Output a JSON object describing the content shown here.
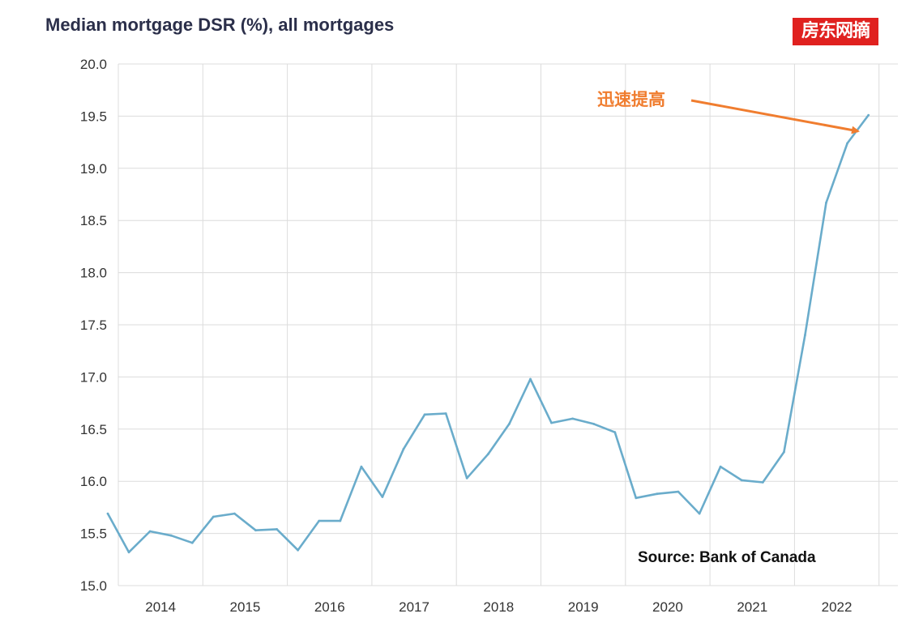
{
  "chart_data": {
    "type": "line",
    "title": "Median mortgage DSR (%), all mortgages",
    "xlabel": "",
    "ylabel": "",
    "ylim": [
      15.0,
      20.0
    ],
    "yticks": [
      "20.0",
      "19.5",
      "19.0",
      "18.5",
      "18.0",
      "17.5",
      "17.0",
      "16.5",
      "16.0",
      "15.5",
      "15.0"
    ],
    "xticks": [
      "2014",
      "2015",
      "2016",
      "2017",
      "2018",
      "2019",
      "2020",
      "2021",
      "2022"
    ],
    "grid": true,
    "series": [
      {
        "color": "#6aaccb",
        "points": [
          {
            "x": "2013Q4",
            "y": 15.69
          },
          {
            "x": "2014Q1",
            "y": 15.32
          },
          {
            "x": "2014Q2",
            "y": 15.52
          },
          {
            "x": "2014Q3",
            "y": 15.48
          },
          {
            "x": "2014Q4",
            "y": 15.41
          },
          {
            "x": "2015Q1",
            "y": 15.66
          },
          {
            "x": "2015Q2",
            "y": 15.69
          },
          {
            "x": "2015Q3",
            "y": 15.53
          },
          {
            "x": "2015Q4",
            "y": 15.54
          },
          {
            "x": "2016Q1",
            "y": 15.34
          },
          {
            "x": "2016Q2",
            "y": 15.62
          },
          {
            "x": "2016Q3",
            "y": 15.62
          },
          {
            "x": "2016Q4",
            "y": 16.14
          },
          {
            "x": "2017Q1",
            "y": 15.85
          },
          {
            "x": "2017Q2",
            "y": 16.31
          },
          {
            "x": "2017Q3",
            "y": 16.64
          },
          {
            "x": "2017Q4",
            "y": 16.65
          },
          {
            "x": "2018Q1",
            "y": 16.03
          },
          {
            "x": "2018Q2",
            "y": 16.26
          },
          {
            "x": "2018Q3",
            "y": 16.55
          },
          {
            "x": "2018Q4",
            "y": 16.98
          },
          {
            "x": "2019Q1",
            "y": 16.56
          },
          {
            "x": "2019Q2",
            "y": 16.6
          },
          {
            "x": "2019Q3",
            "y": 16.55
          },
          {
            "x": "2019Q4",
            "y": 16.47
          },
          {
            "x": "2020Q1",
            "y": 15.84
          },
          {
            "x": "2020Q2",
            "y": 15.88
          },
          {
            "x": "2020Q3",
            "y": 15.9
          },
          {
            "x": "2020Q4",
            "y": 15.69
          },
          {
            "x": "2021Q1",
            "y": 16.14
          },
          {
            "x": "2021Q2",
            "y": 16.01
          },
          {
            "x": "2021Q3",
            "y": 15.99
          },
          {
            "x": "2021Q4",
            "y": 16.28
          },
          {
            "x": "2022Q1",
            "y": 17.4
          },
          {
            "x": "2022Q2",
            "y": 18.67
          },
          {
            "x": "2022Q3",
            "y": 19.24
          },
          {
            "x": "2022Q4",
            "y": 19.51
          }
        ]
      }
    ],
    "annotations": [
      {
        "text": "迅速提高",
        "color": "#f07d2f",
        "points_to": "2022Q3"
      },
      {
        "text": "Source: Bank of Canada",
        "position": "bottom-right"
      }
    ]
  },
  "watermark": {
    "text": "房东网摘",
    "bg": "#e0211f",
    "color": "#ffffff"
  }
}
